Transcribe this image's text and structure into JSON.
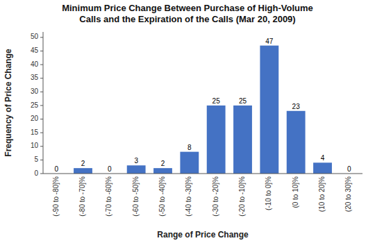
{
  "chart_data": {
    "type": "bar",
    "title": "Minimum Price Change Between Purchase of High-Volume\nCalls and the Expiration of the Calls (Mar 20, 2009)",
    "x_label": "Range of Price Change",
    "y_label": "Frequency of Price Change",
    "categories": [
      "(-90 to -80]%",
      "(-80 to -70]%",
      "(-70 to -60]%",
      "(-60 to -50]%",
      "(-50 to -40]%",
      "(-40 to -30]%",
      "(-30 to -20]%",
      "(-20 to -10]%",
      "(-10 to 0]%",
      "(0 to 10]%",
      "(10 to 20]%",
      "(20 to 30]%"
    ],
    "values": [
      0,
      2,
      0,
      3,
      2,
      8,
      25,
      25,
      47,
      23,
      4,
      0
    ],
    "color": "#4472C4",
    "ylim": [
      0,
      52
    ],
    "yticks": [
      0,
      5,
      10,
      15,
      20,
      25,
      30,
      35,
      40,
      45,
      50
    ],
    "grid": false,
    "data_labels": true
  }
}
